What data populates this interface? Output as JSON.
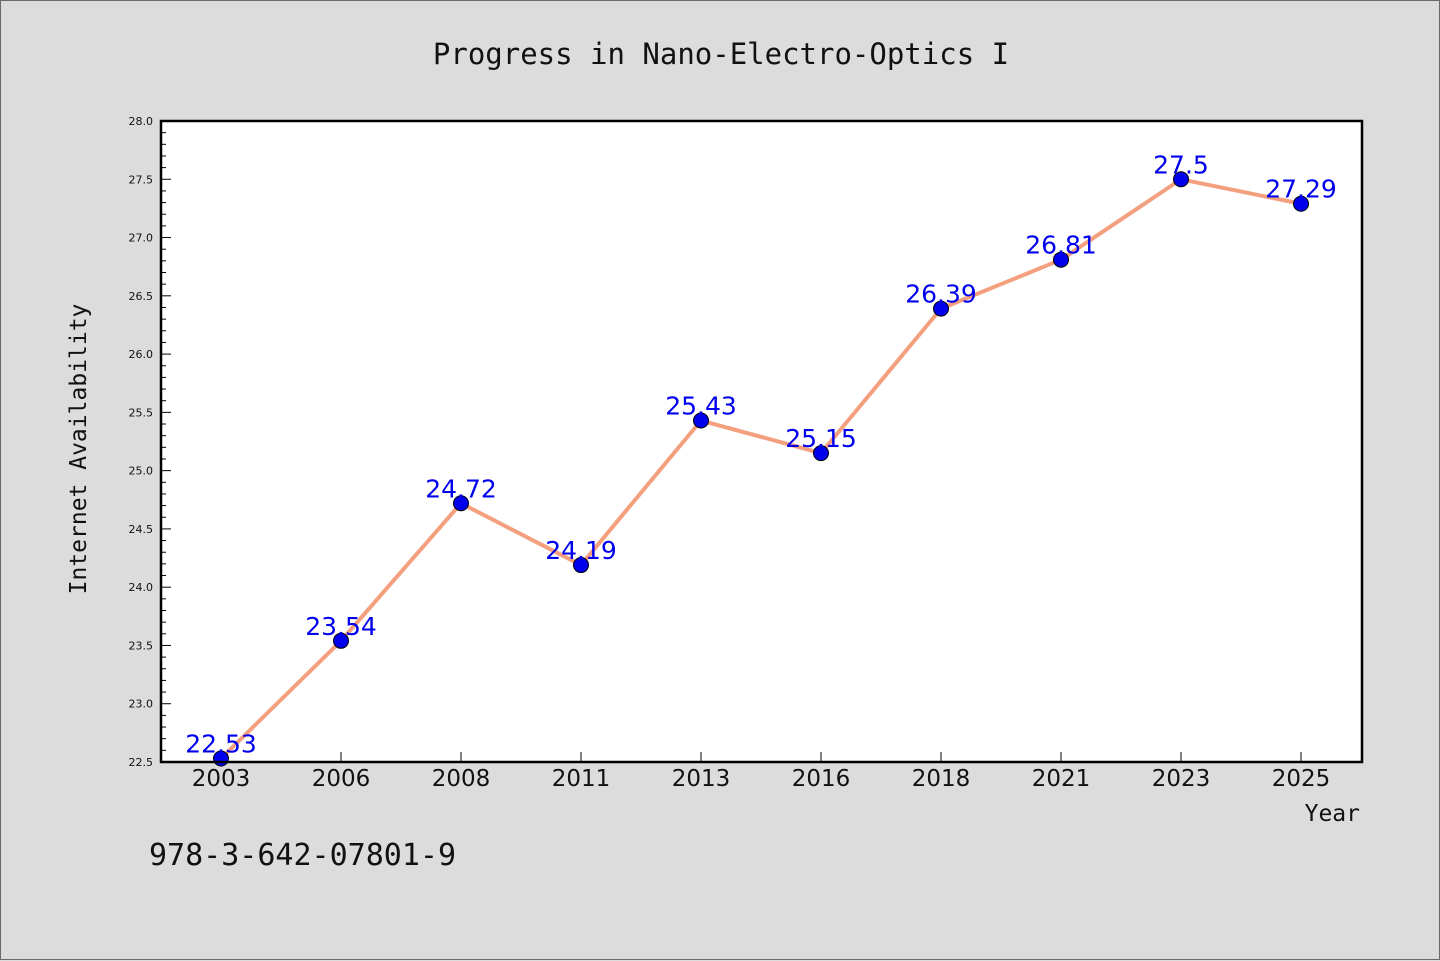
{
  "chart_data": {
    "type": "line",
    "title": "Progress in Nano-Electro-Optics I",
    "xlabel": "Year",
    "ylabel": "Internet Availability",
    "categories": [
      "2003",
      "2006",
      "2008",
      "2011",
      "2013",
      "2016",
      "2018",
      "2021",
      "2023",
      "2025"
    ],
    "series": [
      {
        "values": [
          22.53,
          23.54,
          24.72,
          24.19,
          25.43,
          25.15,
          26.39,
          26.81,
          27.5,
          27.29
        ]
      }
    ],
    "ylim": [
      22.5,
      28.0
    ],
    "yticks": [
      "22.5",
      "23.0",
      "23.5",
      "24.0",
      "24.5",
      "25.0",
      "25.5",
      "26.0",
      "26.5",
      "27.0",
      "27.5",
      "28.0"
    ],
    "grid": false,
    "legend": "none",
    "data_labels": true
  },
  "footer": {
    "isbn": "978-3-642-07801-9"
  },
  "colors": {
    "background": "#dcdcdc",
    "plot_background": "#ffffff",
    "line": "#f4a07f",
    "marker": "#0000ee",
    "data_label": "#0000ee"
  }
}
